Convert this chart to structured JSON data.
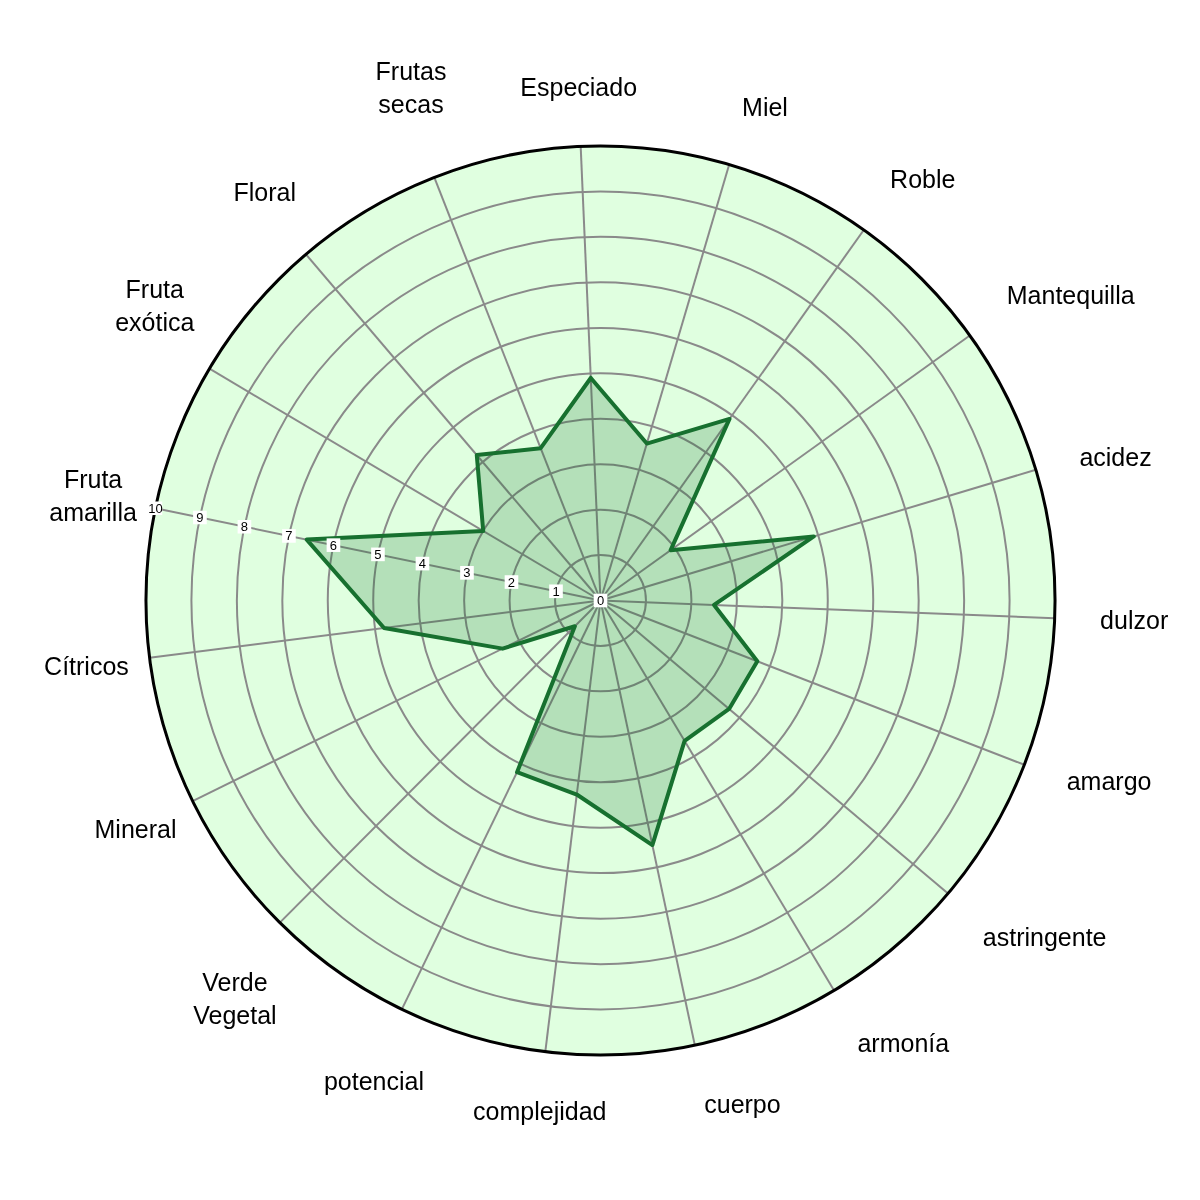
{
  "chart_data": {
    "type": "radar",
    "categories": [
      "Especiado",
      "Miel",
      "Roble",
      "Mantequilla",
      "acidez",
      "dulzor",
      "amargo",
      "astringente",
      "armonía",
      "cuerpo",
      "complejidad",
      "potencial",
      "Verde\nVegetal",
      "Mineral",
      "Cítricos",
      "Fruta\namarilla",
      "Fruta\nexótica",
      "Floral",
      "Frutas\nsecas"
    ],
    "series": [
      {
        "color": "#17702f",
        "values": [
          4.9,
          3.6,
          4.9,
          1.9,
          4.9,
          2.5,
          3.7,
          3.7,
          3.6,
          5.5,
          4.3,
          4.2,
          0.8,
          2.4,
          4.8,
          6.6,
          3.0,
          4.2,
          3.6
        ]
      }
    ],
    "ylim": [
      0,
      10
    ],
    "yticks": [
      0,
      1,
      2,
      3,
      4,
      5,
      6,
      7,
      8,
      9,
      10
    ],
    "grid": true,
    "marker": "none"
  }
}
